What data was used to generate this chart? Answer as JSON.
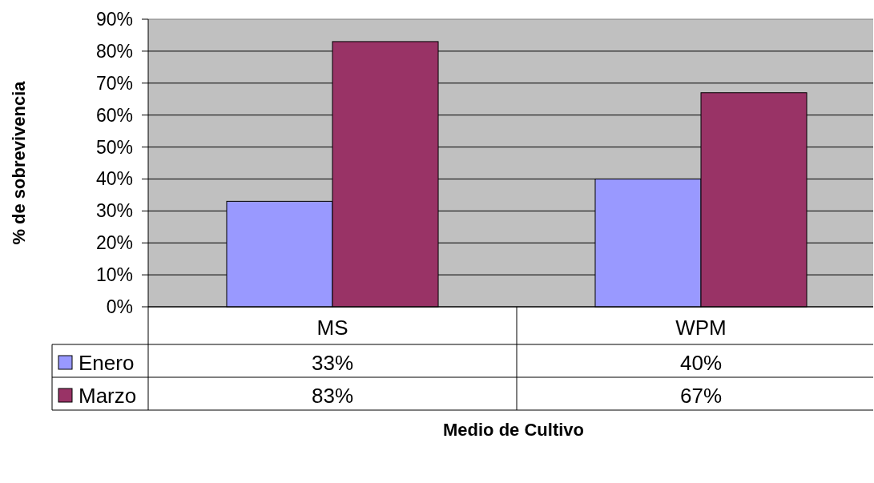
{
  "chart_data": {
    "type": "bar",
    "xlabel": "Medio de Cultivo",
    "ylabel": "% de sobrevivencia",
    "categories": [
      "MS",
      "WPM"
    ],
    "series": [
      {
        "name": "Enero",
        "color": "#9999ff",
        "values": [
          33,
          40
        ],
        "value_labels": [
          "33%",
          "40%"
        ]
      },
      {
        "name": "Marzo",
        "color": "#993366",
        "values": [
          83,
          67
        ],
        "value_labels": [
          "83%",
          "67%"
        ]
      }
    ],
    "ylim": [
      0,
      90
    ],
    "yticks": [
      {
        "value": 0,
        "label": "0%"
      },
      {
        "value": 10,
        "label": "10%"
      },
      {
        "value": 20,
        "label": "20%"
      },
      {
        "value": 30,
        "label": "30%"
      },
      {
        "value": 40,
        "label": "40%"
      },
      {
        "value": 50,
        "label": "50%"
      },
      {
        "value": 60,
        "label": "60%"
      },
      {
        "value": 70,
        "label": "70%"
      },
      {
        "value": 80,
        "label": "80%"
      },
      {
        "value": 90,
        "label": "90%"
      }
    ],
    "grid": "y",
    "legend": "bottom left"
  }
}
